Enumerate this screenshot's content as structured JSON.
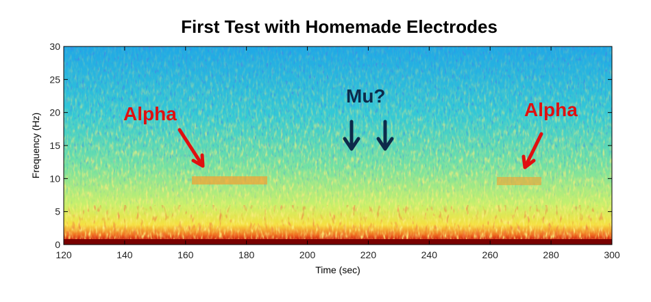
{
  "chart_data": {
    "type": "spectrogram",
    "title": "First Test with Homemade Electrodes",
    "x_label": "Time (sec)",
    "y_label": "Frequency (Hz)",
    "xlim": [
      120,
      300
    ],
    "xticks": [
      120,
      140,
      160,
      180,
      200,
      220,
      240,
      260,
      280,
      300
    ],
    "ylim": [
      0,
      30
    ],
    "yticks": [
      0,
      5,
      10,
      15,
      20,
      25,
      30
    ],
    "annotations": [
      "Alpha",
      "Mu?",
      "Alpha"
    ]
  }
}
